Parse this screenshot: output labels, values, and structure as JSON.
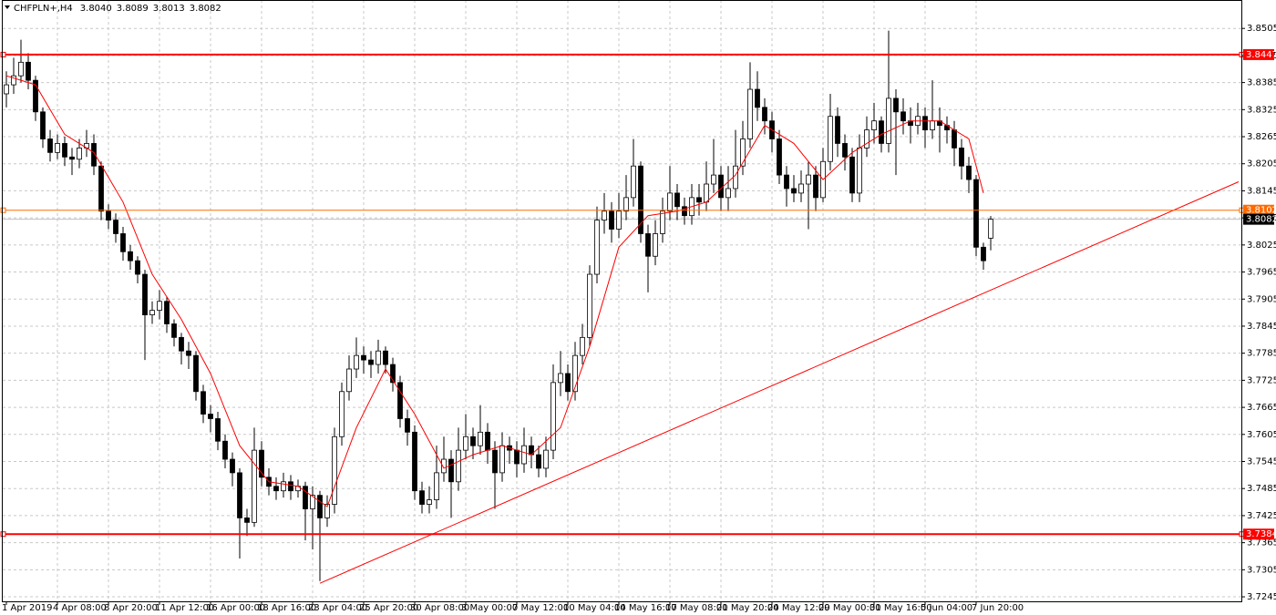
{
  "chart_data": {
    "type": "candlestick",
    "title": "CHFPLN+,H4",
    "candles": [
      {
        "o": 3.836,
        "h": 3.841,
        "l": 3.833,
        "c": 3.838
      },
      {
        "o": 3.838,
        "h": 3.844,
        "l": 3.836,
        "c": 3.84
      },
      {
        "o": 3.84,
        "h": 3.848,
        "l": 3.8385,
        "c": 3.843
      },
      {
        "o": 3.843,
        "h": 3.845,
        "l": 3.837,
        "c": 3.839
      },
      {
        "o": 3.839,
        "h": 3.84,
        "l": 3.83,
        "c": 3.832
      },
      {
        "o": 3.832,
        "h": 3.833,
        "l": 3.824,
        "c": 3.826
      },
      {
        "o": 3.826,
        "h": 3.828,
        "l": 3.821,
        "c": 3.823
      },
      {
        "o": 3.823,
        "h": 3.827,
        "l": 3.8215,
        "c": 3.825
      },
      {
        "o": 3.825,
        "h": 3.8265,
        "l": 3.82,
        "c": 3.822
      },
      {
        "o": 3.822,
        "h": 3.824,
        "l": 3.818,
        "c": 3.8215
      },
      {
        "o": 3.8215,
        "h": 3.826,
        "l": 3.8195,
        "c": 3.824
      },
      {
        "o": 3.824,
        "h": 3.828,
        "l": 3.822,
        "c": 3.825
      },
      {
        "o": 3.825,
        "h": 3.827,
        "l": 3.818,
        "c": 3.82
      },
      {
        "o": 3.82,
        "h": 3.821,
        "l": 3.808,
        "c": 3.81
      },
      {
        "o": 3.81,
        "h": 3.8115,
        "l": 3.806,
        "c": 3.808
      },
      {
        "o": 3.808,
        "h": 3.8095,
        "l": 3.803,
        "c": 3.805
      },
      {
        "o": 3.805,
        "h": 3.8065,
        "l": 3.799,
        "c": 3.801
      },
      {
        "o": 3.801,
        "h": 3.8025,
        "l": 3.797,
        "c": 3.799
      },
      {
        "o": 3.799,
        "h": 3.8,
        "l": 3.794,
        "c": 3.796
      },
      {
        "o": 3.796,
        "h": 3.797,
        "l": 3.777,
        "c": 3.787
      },
      {
        "o": 3.787,
        "h": 3.79,
        "l": 3.785,
        "c": 3.788
      },
      {
        "o": 3.788,
        "h": 3.7925,
        "l": 3.786,
        "c": 3.79
      },
      {
        "o": 3.79,
        "h": 3.791,
        "l": 3.783,
        "c": 3.785
      },
      {
        "o": 3.785,
        "h": 3.786,
        "l": 3.78,
        "c": 3.782
      },
      {
        "o": 3.782,
        "h": 3.783,
        "l": 3.776,
        "c": 3.779
      },
      {
        "o": 3.779,
        "h": 3.781,
        "l": 3.775,
        "c": 3.778
      },
      {
        "o": 3.778,
        "h": 3.779,
        "l": 3.768,
        "c": 3.77
      },
      {
        "o": 3.77,
        "h": 3.7715,
        "l": 3.763,
        "c": 3.765
      },
      {
        "o": 3.765,
        "h": 3.767,
        "l": 3.761,
        "c": 3.764
      },
      {
        "o": 3.764,
        "h": 3.7655,
        "l": 3.757,
        "c": 3.759
      },
      {
        "o": 3.759,
        "h": 3.7605,
        "l": 3.753,
        "c": 3.755
      },
      {
        "o": 3.755,
        "h": 3.7565,
        "l": 3.749,
        "c": 3.752
      },
      {
        "o": 3.752,
        "h": 3.753,
        "l": 3.733,
        "c": 3.742
      },
      {
        "o": 3.742,
        "h": 3.744,
        "l": 3.738,
        "c": 3.741
      },
      {
        "o": 3.741,
        "h": 3.762,
        "l": 3.74,
        "c": 3.757
      },
      {
        "o": 3.757,
        "h": 3.759,
        "l": 3.749,
        "c": 3.751
      },
      {
        "o": 3.751,
        "h": 3.753,
        "l": 3.747,
        "c": 3.749
      },
      {
        "o": 3.749,
        "h": 3.751,
        "l": 3.746,
        "c": 3.748
      },
      {
        "o": 3.748,
        "h": 3.752,
        "l": 3.7465,
        "c": 3.75
      },
      {
        "o": 3.75,
        "h": 3.7515,
        "l": 3.746,
        "c": 3.748
      },
      {
        "o": 3.748,
        "h": 3.7505,
        "l": 3.7465,
        "c": 3.749
      },
      {
        "o": 3.749,
        "h": 3.75,
        "l": 3.737,
        "c": 3.744
      },
      {
        "o": 3.744,
        "h": 3.749,
        "l": 3.735,
        "c": 3.747
      },
      {
        "o": 3.747,
        "h": 3.748,
        "l": 3.728,
        "c": 3.742
      },
      {
        "o": 3.742,
        "h": 3.747,
        "l": 3.74,
        "c": 3.745
      },
      {
        "o": 3.745,
        "h": 3.762,
        "l": 3.743,
        "c": 3.76
      },
      {
        "o": 3.76,
        "h": 3.772,
        "l": 3.758,
        "c": 3.77
      },
      {
        "o": 3.77,
        "h": 3.778,
        "l": 3.768,
        "c": 3.775
      },
      {
        "o": 3.775,
        "h": 3.782,
        "l": 3.773,
        "c": 3.778
      },
      {
        "o": 3.778,
        "h": 3.78,
        "l": 3.774,
        "c": 3.777
      },
      {
        "o": 3.777,
        "h": 3.779,
        "l": 3.773,
        "c": 3.776
      },
      {
        "o": 3.776,
        "h": 3.7815,
        "l": 3.774,
        "c": 3.779
      },
      {
        "o": 3.779,
        "h": 3.78,
        "l": 3.774,
        "c": 3.776
      },
      {
        "o": 3.776,
        "h": 3.7775,
        "l": 3.77,
        "c": 3.772
      },
      {
        "o": 3.772,
        "h": 3.7735,
        "l": 3.762,
        "c": 3.764
      },
      {
        "o": 3.764,
        "h": 3.766,
        "l": 3.758,
        "c": 3.761
      },
      {
        "o": 3.761,
        "h": 3.7625,
        "l": 3.746,
        "c": 3.748
      },
      {
        "o": 3.748,
        "h": 3.75,
        "l": 3.743,
        "c": 3.745
      },
      {
        "o": 3.745,
        "h": 3.749,
        "l": 3.743,
        "c": 3.746
      },
      {
        "o": 3.746,
        "h": 3.758,
        "l": 3.744,
        "c": 3.752
      },
      {
        "o": 3.752,
        "h": 3.76,
        "l": 3.75,
        "c": 3.755
      },
      {
        "o": 3.755,
        "h": 3.757,
        "l": 3.742,
        "c": 3.75
      },
      {
        "o": 3.75,
        "h": 3.762,
        "l": 3.748,
        "c": 3.757
      },
      {
        "o": 3.757,
        "h": 3.765,
        "l": 3.755,
        "c": 3.76
      },
      {
        "o": 3.76,
        "h": 3.762,
        "l": 3.755,
        "c": 3.758
      },
      {
        "o": 3.758,
        "h": 3.767,
        "l": 3.756,
        "c": 3.761
      },
      {
        "o": 3.761,
        "h": 3.763,
        "l": 3.754,
        "c": 3.757
      },
      {
        "o": 3.757,
        "h": 3.759,
        "l": 3.744,
        "c": 3.752
      },
      {
        "o": 3.752,
        "h": 3.761,
        "l": 3.75,
        "c": 3.758
      },
      {
        "o": 3.758,
        "h": 3.76,
        "l": 3.754,
        "c": 3.757
      },
      {
        "o": 3.757,
        "h": 3.759,
        "l": 3.751,
        "c": 3.754
      },
      {
        "o": 3.754,
        "h": 3.762,
        "l": 3.752,
        "c": 3.758
      },
      {
        "o": 3.758,
        "h": 3.76,
        "l": 3.753,
        "c": 3.756
      },
      {
        "o": 3.756,
        "h": 3.758,
        "l": 3.751,
        "c": 3.753
      },
      {
        "o": 3.753,
        "h": 3.76,
        "l": 3.751,
        "c": 3.757
      },
      {
        "o": 3.757,
        "h": 3.776,
        "l": 3.755,
        "c": 3.772
      },
      {
        "o": 3.772,
        "h": 3.779,
        "l": 3.769,
        "c": 3.774
      },
      {
        "o": 3.774,
        "h": 3.776,
        "l": 3.768,
        "c": 3.77
      },
      {
        "o": 3.77,
        "h": 3.781,
        "l": 3.768,
        "c": 3.778
      },
      {
        "o": 3.778,
        "h": 3.785,
        "l": 3.776,
        "c": 3.782
      },
      {
        "o": 3.782,
        "h": 3.798,
        "l": 3.78,
        "c": 3.796
      },
      {
        "o": 3.796,
        "h": 3.811,
        "l": 3.794,
        "c": 3.808
      },
      {
        "o": 3.808,
        "h": 3.814,
        "l": 3.805,
        "c": 3.81
      },
      {
        "o": 3.81,
        "h": 3.812,
        "l": 3.803,
        "c": 3.806
      },
      {
        "o": 3.806,
        "h": 3.814,
        "l": 3.804,
        "c": 3.81
      },
      {
        "o": 3.81,
        "h": 3.818,
        "l": 3.808,
        "c": 3.813
      },
      {
        "o": 3.813,
        "h": 3.826,
        "l": 3.811,
        "c": 3.82
      },
      {
        "o": 3.82,
        "h": 3.821,
        "l": 3.803,
        "c": 3.805
      },
      {
        "o": 3.805,
        "h": 3.807,
        "l": 3.792,
        "c": 3.8
      },
      {
        "o": 3.8,
        "h": 3.808,
        "l": 3.798,
        "c": 3.805
      },
      {
        "o": 3.805,
        "h": 3.813,
        "l": 3.803,
        "c": 3.81
      },
      {
        "o": 3.81,
        "h": 3.82,
        "l": 3.808,
        "c": 3.814
      },
      {
        "o": 3.814,
        "h": 3.816,
        "l": 3.808,
        "c": 3.811
      },
      {
        "o": 3.811,
        "h": 3.813,
        "l": 3.807,
        "c": 3.809
      },
      {
        "o": 3.809,
        "h": 3.816,
        "l": 3.807,
        "c": 3.813
      },
      {
        "o": 3.813,
        "h": 3.816,
        "l": 3.809,
        "c": 3.812
      },
      {
        "o": 3.812,
        "h": 3.821,
        "l": 3.81,
        "c": 3.816
      },
      {
        "o": 3.816,
        "h": 3.826,
        "l": 3.814,
        "c": 3.818
      },
      {
        "o": 3.818,
        "h": 3.82,
        "l": 3.81,
        "c": 3.813
      },
      {
        "o": 3.813,
        "h": 3.82,
        "l": 3.81,
        "c": 3.815
      },
      {
        "o": 3.815,
        "h": 3.828,
        "l": 3.813,
        "c": 3.82
      },
      {
        "o": 3.82,
        "h": 3.83,
        "l": 3.818,
        "c": 3.826
      },
      {
        "o": 3.826,
        "h": 3.843,
        "l": 3.824,
        "c": 3.837
      },
      {
        "o": 3.837,
        "h": 3.841,
        "l": 3.83,
        "c": 3.833
      },
      {
        "o": 3.833,
        "h": 3.835,
        "l": 3.827,
        "c": 3.83
      },
      {
        "o": 3.83,
        "h": 3.832,
        "l": 3.823,
        "c": 3.826
      },
      {
        "o": 3.826,
        "h": 3.828,
        "l": 3.816,
        "c": 3.818
      },
      {
        "o": 3.818,
        "h": 3.82,
        "l": 3.811,
        "c": 3.815
      },
      {
        "o": 3.815,
        "h": 3.818,
        "l": 3.812,
        "c": 3.814
      },
      {
        "o": 3.814,
        "h": 3.819,
        "l": 3.812,
        "c": 3.816
      },
      {
        "o": 3.816,
        "h": 3.821,
        "l": 3.806,
        "c": 3.818
      },
      {
        "o": 3.818,
        "h": 3.82,
        "l": 3.81,
        "c": 3.813
      },
      {
        "o": 3.813,
        "h": 3.824,
        "l": 3.812,
        "c": 3.821
      },
      {
        "o": 3.821,
        "h": 3.836,
        "l": 3.819,
        "c": 3.831
      },
      {
        "o": 3.831,
        "h": 3.833,
        "l": 3.822,
        "c": 3.825
      },
      {
        "o": 3.825,
        "h": 3.827,
        "l": 3.819,
        "c": 3.822
      },
      {
        "o": 3.822,
        "h": 3.824,
        "l": 3.812,
        "c": 3.814
      },
      {
        "o": 3.814,
        "h": 3.827,
        "l": 3.812,
        "c": 3.824
      },
      {
        "o": 3.824,
        "h": 3.831,
        "l": 3.822,
        "c": 3.828
      },
      {
        "o": 3.828,
        "h": 3.834,
        "l": 3.825,
        "c": 3.83
      },
      {
        "o": 3.83,
        "h": 3.831,
        "l": 3.823,
        "c": 3.825
      },
      {
        "o": 3.825,
        "h": 3.85,
        "l": 3.823,
        "c": 3.835
      },
      {
        "o": 3.835,
        "h": 3.837,
        "l": 3.818,
        "c": 3.832
      },
      {
        "o": 3.832,
        "h": 3.835,
        "l": 3.827,
        "c": 3.83
      },
      {
        "o": 3.83,
        "h": 3.833,
        "l": 3.825,
        "c": 3.829
      },
      {
        "o": 3.829,
        "h": 3.834,
        "l": 3.827,
        "c": 3.831
      },
      {
        "o": 3.831,
        "h": 3.833,
        "l": 3.824,
        "c": 3.828
      },
      {
        "o": 3.828,
        "h": 3.839,
        "l": 3.826,
        "c": 3.83
      },
      {
        "o": 3.83,
        "h": 3.833,
        "l": 3.823,
        "c": 3.829
      },
      {
        "o": 3.829,
        "h": 3.831,
        "l": 3.825,
        "c": 3.828
      },
      {
        "o": 3.828,
        "h": 3.83,
        "l": 3.82,
        "c": 3.824
      },
      {
        "o": 3.824,
        "h": 3.826,
        "l": 3.817,
        "c": 3.82
      },
      {
        "o": 3.82,
        "h": 3.822,
        "l": 3.814,
        "c": 3.817
      },
      {
        "o": 3.817,
        "h": 3.818,
        "l": 3.8,
        "c": 3.802
      },
      {
        "o": 3.802,
        "h": 3.803,
        "l": 3.797,
        "c": 3.799
      },
      {
        "o": 3.804,
        "o_label": "3.8040",
        "h": 3.8089,
        "l": 3.8013,
        "c": 3.8082
      }
    ],
    "colors": {
      "up": "#ffffff",
      "down": "#000000",
      "outline": "#000000"
    },
    "ma": {
      "color": "#ff0000",
      "x": [
        0,
        4,
        8,
        12,
        16,
        20,
        24,
        28,
        32,
        36,
        40,
        44,
        48,
        52,
        56,
        60,
        64,
        68,
        72,
        76,
        80,
        84,
        88,
        92,
        96,
        100,
        104,
        108,
        112,
        116,
        120,
        124,
        128,
        132,
        134
      ],
      "values": [
        3.84,
        3.838,
        3.827,
        3.823,
        3.812,
        3.796,
        3.786,
        3.774,
        3.758,
        3.75,
        3.749,
        3.7445,
        3.762,
        3.775,
        3.765,
        3.753,
        3.756,
        3.758,
        3.756,
        3.762,
        3.78,
        3.802,
        3.809,
        3.81,
        3.812,
        3.818,
        3.829,
        3.825,
        3.817,
        3.823,
        3.827,
        3.83,
        3.83,
        3.826,
        3.814
      ]
    },
    "trendline": {
      "color": "#ff0000",
      "x": [
        43,
        169
      ],
      "values": [
        3.7275,
        3.8165
      ]
    },
    "levels": [
      {
        "value": 3.8447,
        "color": "#ff0000"
      },
      {
        "value": 3.8102,
        "color": "#ff6a00"
      },
      {
        "value": 3.7384,
        "color": "#ff0000"
      }
    ],
    "bid_color": "#c0c0c0",
    "xlim": [
      -0.5,
      169.375
    ],
    "xticks": [
      {
        "value": 0,
        "label": "1 Apr 2019"
      },
      {
        "value": 7,
        "label": "4 Apr 08:00"
      },
      {
        "value": 14,
        "label": "8 Apr 20:00"
      },
      {
        "value": 21,
        "label": "11 Apr 12:00"
      },
      {
        "value": 28,
        "label": "16 Apr 00:00"
      },
      {
        "value": 35,
        "label": "18 Apr 16:00"
      },
      {
        "value": 42,
        "label": "23 Apr 04:00"
      },
      {
        "value": 49,
        "label": "25 Apr 20:00"
      },
      {
        "value": 56,
        "label": "30 Apr 08:00"
      },
      {
        "value": 63,
        "label": "3 May 00:00"
      },
      {
        "value": 70,
        "label": "7 May 12:00"
      },
      {
        "value": 77,
        "label": "10 May 04:00"
      },
      {
        "value": 84,
        "label": "14 May 16:00"
      },
      {
        "value": 91,
        "label": "17 May 08:00"
      },
      {
        "value": 98,
        "label": "21 May 20:00"
      },
      {
        "value": 105,
        "label": "24 May 12:00"
      },
      {
        "value": 112,
        "label": "29 May 00:00"
      },
      {
        "value": 119,
        "label": "31 May 16:00"
      },
      {
        "value": 126,
        "label": "5 Jun 04:00"
      },
      {
        "value": 133,
        "label": "7 Jun 20:00"
      }
    ],
    "ylim": [
      3.7235,
      3.8568
    ],
    "yticks": [
      3.7245,
      3.7305,
      3.7365,
      3.7425,
      3.7485,
      3.7545,
      3.7605,
      3.7665,
      3.7725,
      3.7785,
      3.7845,
      3.7905,
      3.7965,
      3.8025,
      3.8085,
      3.8145,
      3.8205,
      3.8265,
      3.8325,
      3.8385,
      3.8445,
      3.8505
    ],
    "grid": true
  }
}
